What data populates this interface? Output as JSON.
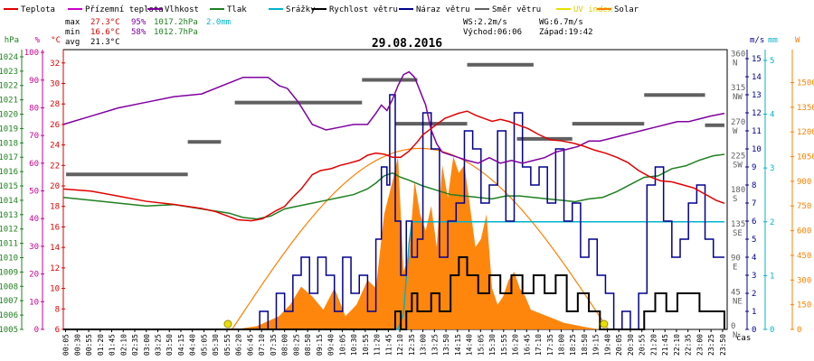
{
  "chart_data": {
    "type": "line",
    "title": "29.08.2016",
    "legend": [
      {
        "label": "Teplota",
        "color": "#e00000"
      },
      {
        "label": "Přízemní teplota",
        "color": "#cc00cc"
      },
      {
        "label": "Vlhkost",
        "color": "#8000a0"
      },
      {
        "label": "Tlak",
        "color": "#208020"
      },
      {
        "label": "Srážky",
        "color": "#00b4c8"
      },
      {
        "label": "Rychlost větru",
        "color": "#000000"
      },
      {
        "label": "Náraz větru",
        "color": "#000090"
      },
      {
        "label": "Směr větru",
        "color": "#606060"
      },
      {
        "label": "UV index",
        "color": "#e8e000"
      },
      {
        "label": "Solar",
        "color": "#ff8000"
      }
    ],
    "stats": {
      "max_label": "max",
      "max_temp": "27.3°C",
      "max_hum": "95%",
      "max_press": "1017.2hPa",
      "rain_total": "2.0mm",
      "min_label": "min",
      "min_temp": "16.6°C",
      "min_hum": "58%",
      "min_press": "1012.7hPa",
      "avg_label": "avg",
      "avg_temp": "21.3°C",
      "ws": "WS:2.2m/s",
      "wg": "WG:6.7m/s",
      "sunrise": "Východ:06:06",
      "sunset": "Západ:19:42"
    },
    "axes": {
      "hpa": {
        "unit": "hPa",
        "ticks": [
          1005,
          1006,
          1007,
          1008,
          1009,
          1010,
          1011,
          1012,
          1013,
          1014,
          1015,
          1016,
          1017,
          1018,
          1019,
          1020,
          1021,
          1022,
          1023,
          1024
        ]
      },
      "pct": {
        "unit": "%",
        "ticks": [
          0,
          10,
          20,
          30,
          40,
          50,
          60,
          70,
          80,
          90,
          100
        ]
      },
      "temp": {
        "unit": "°C",
        "ticks": [
          6,
          8,
          10,
          12,
          14,
          16,
          18,
          20,
          22,
          24,
          26,
          28,
          30,
          32
        ]
      },
      "ms": {
        "unit": "m/s",
        "ticks": [
          0,
          1,
          2,
          3,
          4,
          5,
          6,
          7,
          8,
          9,
          10,
          11,
          12,
          13,
          14,
          15
        ]
      },
      "mm": {
        "unit": "mm",
        "ticks": [
          0,
          1,
          2,
          3,
          4,
          5
        ]
      },
      "w": {
        "unit": "W",
        "ticks": [
          0,
          150,
          300,
          450,
          600,
          750,
          900,
          1050,
          1200,
          1350,
          1500
        ]
      },
      "dir": [
        {
          "deg": 0,
          "label": "0",
          "name": "N"
        },
        {
          "deg": 45,
          "label": "45",
          "name": "NE"
        },
        {
          "deg": 90,
          "label": "90",
          "name": "E"
        },
        {
          "deg": 135,
          "label": "135",
          "name": "SE"
        },
        {
          "deg": 180,
          "label": "180",
          "name": "S"
        },
        {
          "deg": 225,
          "label": "225",
          "name": "SW"
        },
        {
          "deg": 270,
          "label": "270",
          "name": "W"
        },
        {
          "deg": 315,
          "label": "315",
          "name": "NW"
        },
        {
          "deg": 360,
          "label": "360",
          "name": "N"
        }
      ],
      "x_unit": "čas",
      "x_ticks": [
        "00:05",
        "00:30",
        "00:55",
        "01:20",
        "01:45",
        "02:10",
        "02:35",
        "03:00",
        "03:25",
        "03:50",
        "04:15",
        "04:40",
        "05:05",
        "05:30",
        "05:55",
        "06:20",
        "06:45",
        "07:10",
        "07:35",
        "08:00",
        "08:25",
        "08:50",
        "09:15",
        "09:40",
        "10:05",
        "10:30",
        "10:55",
        "11:20",
        "11:45",
        "12:10",
        "12:35",
        "13:00",
        "13:25",
        "13:50",
        "14:15",
        "14:40",
        "15:05",
        "15:30",
        "15:55",
        "16:20",
        "16:45",
        "17:10",
        "17:35",
        "18:00",
        "18:25",
        "18:50",
        "19:15",
        "19:40",
        "20:05",
        "20:30",
        "20:55",
        "21:20",
        "21:45",
        "22:10",
        "22:35",
        "23:00",
        "23:25",
        "23:50"
      ],
      "x_range_hours": [
        0,
        24
      ]
    },
    "series": [
      {
        "name": "Teplota",
        "unit": "°C",
        "t": [
          0,
          1,
          2,
          3,
          4,
          5,
          5.5,
          6,
          6.3,
          6.8,
          7.2,
          7.7,
          8,
          8.3,
          8.6,
          9,
          9.3,
          9.7,
          10,
          10.3,
          10.7,
          11,
          11.3,
          11.6,
          11.9,
          12.2,
          12.5,
          12.8,
          13,
          13.2,
          13.5,
          13.8,
          14,
          14.3,
          14.6,
          14.9,
          15.2,
          15.5,
          15.8,
          16.1,
          16.4,
          16.8,
          17.2,
          17.6,
          18,
          18.4,
          18.8,
          19.2,
          19.6,
          20,
          20.4,
          20.8,
          21.2,
          21.6,
          22,
          22.4,
          22.8,
          23.2,
          23.6,
          23.9
        ],
        "values": [
          19.7,
          19.5,
          19,
          18.5,
          18.2,
          17.8,
          17.5,
          17,
          16.7,
          16.6,
          16.8,
          17.6,
          18,
          18.9,
          19.7,
          21.1,
          21.5,
          21.7,
          22,
          22.2,
          22.5,
          23,
          23.2,
          23.1,
          22.8,
          22.8,
          23.4,
          24.3,
          25,
          25.4,
          26,
          26.6,
          26.8,
          27.1,
          27.3,
          26.9,
          26.6,
          26.3,
          26.5,
          26.3,
          26,
          25.6,
          25,
          24.5,
          24.4,
          24.2,
          23.9,
          23.5,
          23.2,
          22.8,
          22.3,
          21.5,
          20.9,
          20.5,
          20.4,
          20.1,
          19.8,
          19.2,
          18.6,
          18.3
        ]
      },
      {
        "name": "Vlhkost",
        "unit": "%",
        "t": [
          0,
          1,
          2,
          3,
          4,
          5,
          6,
          6.5,
          7,
          7.4,
          7.8,
          8.1,
          8.5,
          9,
          9.5,
          10,
          10.5,
          11,
          11.3,
          11.5,
          11.7,
          11.9,
          12.1,
          12.3,
          12.5,
          12.7,
          12.9,
          13.1,
          13.3,
          13.5,
          13.7,
          14,
          14.3,
          14.6,
          15,
          15.4,
          15.8,
          16.2,
          16.6,
          17,
          17.4,
          17.8,
          18.2,
          18.6,
          19,
          19.4,
          19.8,
          20.2,
          20.6,
          21,
          21.4,
          21.8,
          22.2,
          22.6,
          23,
          23.4,
          23.9
        ],
        "values": [
          74,
          77,
          80,
          82,
          84,
          85,
          89,
          91,
          91,
          91,
          88,
          87,
          82,
          74,
          72,
          73,
          74,
          74,
          78,
          81,
          79,
          83,
          88,
          92,
          93,
          91,
          86,
          81,
          72,
          67,
          64,
          63,
          62,
          61,
          60,
          62,
          60,
          61,
          60,
          61,
          62,
          64,
          65,
          66,
          68,
          68,
          69,
          70,
          71,
          72,
          73,
          74,
          75,
          75,
          76,
          77,
          78
        ]
      },
      {
        "name": "Tlak",
        "unit": "hPa",
        "t": [
          0,
          1,
          2,
          3,
          4,
          5,
          6,
          6.5,
          7,
          7.5,
          8,
          8.5,
          9,
          9.5,
          10,
          10.5,
          11,
          11.3,
          11.6,
          11.9,
          12.2,
          12.5,
          13,
          13.5,
          14,
          14.5,
          15,
          15.5,
          16,
          16.5,
          17,
          17.5,
          18,
          18.5,
          19,
          19.5,
          20,
          20.5,
          21,
          21.5,
          22,
          22.5,
          23,
          23.5,
          23.9
        ],
        "values": [
          1014.2,
          1014.0,
          1013.8,
          1013.6,
          1013.7,
          1013.4,
          1013.1,
          1012.8,
          1012.7,
          1012.9,
          1013.4,
          1013.6,
          1013.8,
          1014.0,
          1014.2,
          1014.4,
          1014.8,
          1015.2,
          1015.7,
          1015.9,
          1015.6,
          1015.4,
          1015.0,
          1014.7,
          1014.4,
          1014.3,
          1014.2,
          1014.1,
          1014.3,
          1014.3,
          1014.2,
          1014.1,
          1014.0,
          1013.9,
          1014.1,
          1014.2,
          1014.6,
          1015.1,
          1015.6,
          1015.7,
          1016.2,
          1016.4,
          1016.8,
          1017.1,
          1017.2
        ]
      },
      {
        "name": "Srážky",
        "unit": "mm",
        "t": [
          0,
          11.9,
          12.1,
          12.3,
          12.5,
          12.6,
          23.9
        ],
        "values": [
          0,
          0,
          0,
          0.3,
          1.6,
          2.0,
          2.0
        ]
      },
      {
        "name": "Rychlost větru",
        "unit": "m/s",
        "t": [
          0,
          11.8,
          12.0,
          12.2,
          12.4,
          12.6,
          12.8,
          13.0,
          13.3,
          13.6,
          14.0,
          14.3,
          14.6,
          15.0,
          15.4,
          15.8,
          16.2,
          16.6,
          17.0,
          17.4,
          17.8,
          18.2,
          18.6,
          19.0,
          19.4,
          19.8,
          20.2,
          20.6,
          21.0,
          21.4,
          21.8,
          22.2,
          22.6,
          23.0,
          23.4,
          23.9
        ],
        "values": [
          0,
          0,
          1,
          0,
          1,
          2,
          1,
          1,
          2,
          1,
          3,
          4,
          3,
          2,
          3,
          2,
          3,
          2,
          3,
          2,
          3,
          1,
          2,
          1,
          0,
          0,
          0,
          0,
          1,
          2,
          1,
          2,
          2,
          1,
          1,
          0
        ]
      },
      {
        "name": "Náraz větru",
        "unit": "m/s",
        "t": [
          0,
          6.8,
          7.1,
          7.4,
          7.7,
          8.0,
          8.3,
          8.6,
          8.9,
          9.2,
          9.5,
          9.8,
          10.1,
          10.4,
          10.7,
          11.0,
          11.3,
          11.5,
          11.7,
          11.8,
          12.0,
          12.2,
          12.4,
          12.6,
          12.8,
          13.0,
          13.3,
          13.6,
          13.9,
          14.2,
          14.5,
          14.8,
          15.1,
          15.4,
          15.7,
          16.0,
          16.3,
          16.6,
          16.9,
          17.2,
          17.5,
          17.8,
          18.1,
          18.4,
          18.7,
          19.0,
          19.3,
          19.6,
          19.9,
          20.2,
          20.5,
          20.8,
          21.1,
          21.4,
          21.7,
          22.0,
          22.3,
          22.6,
          22.9,
          23.2,
          23.5,
          23.9
        ],
        "values": [
          0,
          0,
          1,
          0,
          2,
          1,
          3,
          4,
          2,
          4,
          3,
          1,
          4,
          2,
          3,
          1,
          5,
          9,
          8,
          13,
          6,
          3,
          6,
          4,
          5,
          12,
          10,
          4,
          6,
          7,
          11,
          10,
          7,
          8,
          11,
          6,
          12,
          9,
          8,
          9,
          7,
          10,
          6,
          7,
          4,
          5,
          3,
          2,
          0,
          1,
          0,
          2,
          8,
          9,
          6,
          4,
          5,
          7,
          8,
          5,
          4,
          4
        ]
      },
      {
        "name": "Směr větru",
        "unit": "deg",
        "segments": [
          {
            "from": 0.1,
            "to": 4.5,
            "deg": 205
          },
          {
            "from": 4.5,
            "to": 5.7,
            "deg": 248
          },
          {
            "from": 6.2,
            "to": 10.8,
            "deg": 300
          },
          {
            "from": 10.8,
            "to": 12.8,
            "deg": 330
          },
          {
            "from": 12.0,
            "to": 14.6,
            "deg": 272
          },
          {
            "from": 14.6,
            "to": 17.0,
            "deg": 350
          },
          {
            "from": 16.4,
            "to": 18.4,
            "deg": 252
          },
          {
            "from": 18.4,
            "to": 21.0,
            "deg": 272
          },
          {
            "from": 21.0,
            "to": 23.2,
            "deg": 310
          },
          {
            "from": 23.2,
            "to": 23.9,
            "deg": 270
          }
        ]
      },
      {
        "name": "UV index",
        "unit": "",
        "markers": [
          {
            "t": 5.95,
            "value": 0
          },
          {
            "t": 19.55,
            "value": 0
          }
        ]
      },
      {
        "name": "Solar",
        "unit": "W/m2",
        "type": "area",
        "theoretical_peak": 1100,
        "sunrise_h": 6.1,
        "sunset_h": 19.7,
        "t": [
          6.2,
          7,
          7.8,
          8.2,
          8.6,
          9.0,
          9.4,
          9.8,
          10.2,
          10.6,
          11.0,
          11.3,
          11.6,
          11.9,
          12.1,
          12.3,
          12.5,
          12.7,
          12.9,
          13.1,
          13.3,
          13.5,
          13.7,
          13.9,
          14.1,
          14.3,
          14.5,
          14.7,
          14.9,
          15.1,
          15.3,
          15.5,
          15.7,
          15.9,
          16.1,
          16.3,
          16.5,
          16.7,
          16.9,
          17.2,
          17.5,
          17.8,
          18.1,
          18.4,
          18.7,
          19.0,
          19.4
        ],
        "values": [
          0,
          20,
          80,
          150,
          260,
          200,
          120,
          250,
          80,
          150,
          300,
          250,
          700,
          900,
          1050,
          350,
          450,
          900,
          700,
          600,
          750,
          500,
          1000,
          800,
          1050,
          950,
          1000,
          750,
          500,
          550,
          700,
          250,
          150,
          200,
          300,
          350,
          250,
          200,
          120,
          100,
          80,
          60,
          40,
          30,
          20,
          10,
          0
        ]
      }
    ]
  }
}
